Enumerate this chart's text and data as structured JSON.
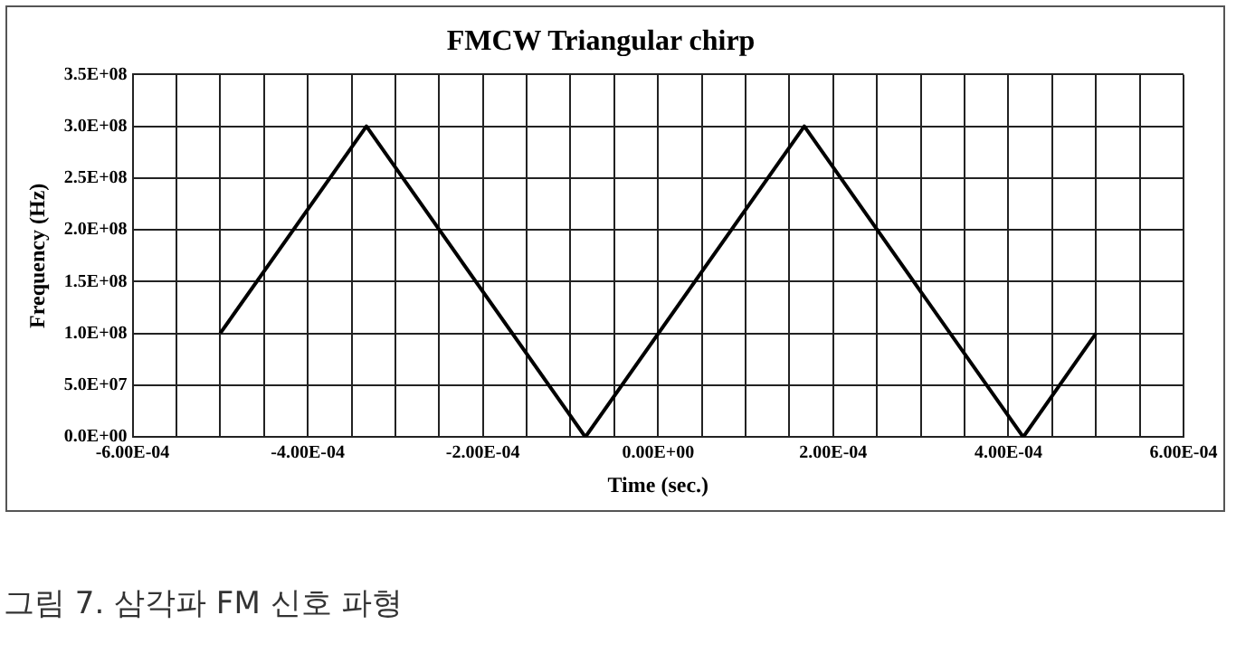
{
  "chart_data": {
    "type": "line",
    "title": "FMCW Triangular chirp",
    "xlabel": "Time (sec.)",
    "ylabel": "Frequency (Hz)",
    "x": [
      -0.0005,
      -0.000333,
      -8.3e-05,
      0.000167,
      0.000417,
      0.0005
    ],
    "values": [
      100000000.0,
      300000000.0,
      0,
      300000000.0,
      0,
      100000000.0
    ],
    "color": "#000000",
    "marker": "none",
    "line_style": "solid",
    "grid": true,
    "legend": false,
    "xlim": [
      -0.0006,
      0.0006
    ],
    "xticks": [
      {
        "value": -0.0006,
        "label": "-6.00E-04"
      },
      {
        "value": -0.00055,
        "label": null
      },
      {
        "value": -0.0005,
        "label": null
      },
      {
        "value": -0.00045,
        "label": null
      },
      {
        "value": -0.0004,
        "label": "-4.00E-04"
      },
      {
        "value": -0.00035,
        "label": null
      },
      {
        "value": -0.0003,
        "label": null
      },
      {
        "value": -0.00025,
        "label": null
      },
      {
        "value": -0.0002,
        "label": "-2.00E-04"
      },
      {
        "value": -0.00015,
        "label": null
      },
      {
        "value": -0.0001,
        "label": null
      },
      {
        "value": -5e-05,
        "label": null
      },
      {
        "value": 0,
        "label": "0.00E+00"
      },
      {
        "value": 5e-05,
        "label": null
      },
      {
        "value": 0.0001,
        "label": null
      },
      {
        "value": 0.00015,
        "label": null
      },
      {
        "value": 0.0002,
        "label": "2.00E-04"
      },
      {
        "value": 0.00025,
        "label": null
      },
      {
        "value": 0.0003,
        "label": null
      },
      {
        "value": 0.00035,
        "label": null
      },
      {
        "value": 0.0004,
        "label": "4.00E-04"
      },
      {
        "value": 0.00045,
        "label": null
      },
      {
        "value": 0.0005,
        "label": null
      },
      {
        "value": 0.00055,
        "label": null
      },
      {
        "value": 0.0006,
        "label": "6.00E-04"
      }
    ],
    "ylim": [
      0,
      350000000.0
    ],
    "yticks": [
      {
        "value": 0,
        "label": "0.0E+00"
      },
      {
        "value": 50000000.0,
        "label": "5.0E+07"
      },
      {
        "value": 100000000.0,
        "label": "1.0E+08"
      },
      {
        "value": 150000000.0,
        "label": "1.5E+08"
      },
      {
        "value": 200000000.0,
        "label": "2.0E+08"
      },
      {
        "value": 250000000.0,
        "label": "2.5E+08"
      },
      {
        "value": 300000000.0,
        "label": "3.0E+08"
      },
      {
        "value": 350000000.0,
        "label": "3.5E+08"
      }
    ],
    "annotations": [
      "그림 7. 삼각파 FM 신호 파형"
    ]
  }
}
